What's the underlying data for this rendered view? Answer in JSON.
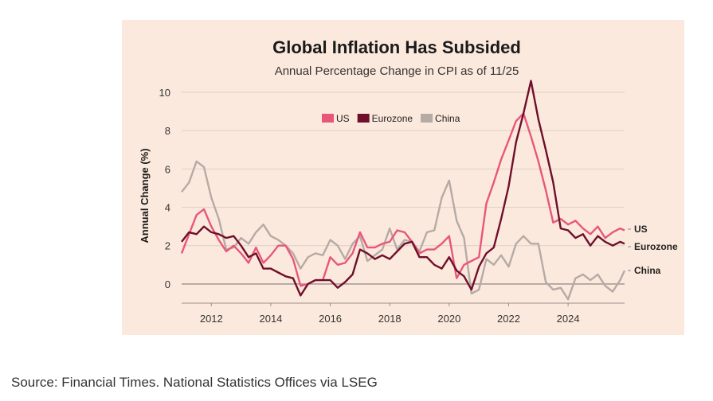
{
  "source_text": "Source: Financial Times. National Statistics Offices via LSEG",
  "chart_data": {
    "type": "line",
    "title": "Global Inflation Has Subsided",
    "subtitle": "Annual Percentage Change in CPI as of 11/25",
    "xlabel": "",
    "ylabel": "Annual Change (%)",
    "xlim": [
      2011.0,
      2025.9
    ],
    "ylim": [
      -1,
      10.5
    ],
    "yticks": [
      0,
      2,
      4,
      6,
      8,
      10
    ],
    "xticks": [
      2012,
      2014,
      2016,
      2018,
      2020,
      2022,
      2024
    ],
    "grid": true,
    "legend_position": "top-center",
    "series": [
      {
        "name": "US",
        "color": "#e8577a",
        "end_label": "US",
        "points": [
          [
            2011.0,
            1.6
          ],
          [
            2011.25,
            2.6
          ],
          [
            2011.5,
            3.6
          ],
          [
            2011.75,
            3.9
          ],
          [
            2012.0,
            3.0
          ],
          [
            2012.25,
            2.3
          ],
          [
            2012.5,
            1.7
          ],
          [
            2012.75,
            2.0
          ],
          [
            2013.0,
            1.6
          ],
          [
            2013.25,
            1.1
          ],
          [
            2013.5,
            1.9
          ],
          [
            2013.75,
            1.1
          ],
          [
            2014.0,
            1.5
          ],
          [
            2014.25,
            2.0
          ],
          [
            2014.5,
            2.0
          ],
          [
            2014.75,
            1.3
          ],
          [
            2015.0,
            -0.1
          ],
          [
            2015.25,
            0.0
          ],
          [
            2015.5,
            0.2
          ],
          [
            2015.75,
            0.2
          ],
          [
            2016.0,
            1.4
          ],
          [
            2016.25,
            1.0
          ],
          [
            2016.5,
            1.1
          ],
          [
            2016.75,
            1.6
          ],
          [
            2017.0,
            2.7
          ],
          [
            2017.25,
            1.9
          ],
          [
            2017.5,
            1.9
          ],
          [
            2017.75,
            2.1
          ],
          [
            2018.0,
            2.2
          ],
          [
            2018.25,
            2.8
          ],
          [
            2018.5,
            2.7
          ],
          [
            2018.75,
            2.2
          ],
          [
            2019.0,
            1.6
          ],
          [
            2019.25,
            1.8
          ],
          [
            2019.5,
            1.8
          ],
          [
            2019.75,
            2.1
          ],
          [
            2020.0,
            2.5
          ],
          [
            2020.25,
            0.3
          ],
          [
            2020.5,
            1.0
          ],
          [
            2020.75,
            1.2
          ],
          [
            2021.0,
            1.4
          ],
          [
            2021.25,
            4.2
          ],
          [
            2021.5,
            5.3
          ],
          [
            2021.75,
            6.5
          ],
          [
            2022.0,
            7.5
          ],
          [
            2022.25,
            8.5
          ],
          [
            2022.5,
            8.9
          ],
          [
            2022.75,
            7.7
          ],
          [
            2023.0,
            6.4
          ],
          [
            2023.25,
            4.9
          ],
          [
            2023.5,
            3.2
          ],
          [
            2023.75,
            3.4
          ],
          [
            2024.0,
            3.1
          ],
          [
            2024.25,
            3.3
          ],
          [
            2024.5,
            2.9
          ],
          [
            2024.75,
            2.6
          ],
          [
            2025.0,
            3.0
          ],
          [
            2025.25,
            2.4
          ],
          [
            2025.5,
            2.7
          ],
          [
            2025.75,
            2.9
          ],
          [
            2025.9,
            2.8
          ]
        ]
      },
      {
        "name": "Eurozone",
        "color": "#6e0f2b",
        "end_label": "Eurozone",
        "points": [
          [
            2011.0,
            2.2
          ],
          [
            2011.25,
            2.7
          ],
          [
            2011.5,
            2.6
          ],
          [
            2011.75,
            3.0
          ],
          [
            2012.0,
            2.7
          ],
          [
            2012.25,
            2.6
          ],
          [
            2012.5,
            2.4
          ],
          [
            2012.75,
            2.5
          ],
          [
            2013.0,
            2.0
          ],
          [
            2013.25,
            1.4
          ],
          [
            2013.5,
            1.6
          ],
          [
            2013.75,
            0.8
          ],
          [
            2014.0,
            0.8
          ],
          [
            2014.25,
            0.6
          ],
          [
            2014.5,
            0.4
          ],
          [
            2014.75,
            0.3
          ],
          [
            2015.0,
            -0.6
          ],
          [
            2015.25,
            0.0
          ],
          [
            2015.5,
            0.2
          ],
          [
            2015.75,
            0.2
          ],
          [
            2016.0,
            0.2
          ],
          [
            2016.25,
            -0.2
          ],
          [
            2016.5,
            0.1
          ],
          [
            2016.75,
            0.5
          ],
          [
            2017.0,
            1.8
          ],
          [
            2017.25,
            1.6
          ],
          [
            2017.5,
            1.3
          ],
          [
            2017.75,
            1.5
          ],
          [
            2018.0,
            1.3
          ],
          [
            2018.25,
            1.7
          ],
          [
            2018.5,
            2.1
          ],
          [
            2018.75,
            2.2
          ],
          [
            2019.0,
            1.4
          ],
          [
            2019.25,
            1.4
          ],
          [
            2019.5,
            1.0
          ],
          [
            2019.75,
            0.8
          ],
          [
            2020.0,
            1.4
          ],
          [
            2020.25,
            0.7
          ],
          [
            2020.5,
            0.4
          ],
          [
            2020.75,
            -0.3
          ],
          [
            2021.0,
            0.9
          ],
          [
            2021.25,
            1.6
          ],
          [
            2021.5,
            1.9
          ],
          [
            2021.75,
            3.4
          ],
          [
            2022.0,
            5.1
          ],
          [
            2022.25,
            7.4
          ],
          [
            2022.5,
            8.9
          ],
          [
            2022.75,
            10.6
          ],
          [
            2023.0,
            8.6
          ],
          [
            2023.25,
            7.0
          ],
          [
            2023.5,
            5.3
          ],
          [
            2023.75,
            2.9
          ],
          [
            2024.0,
            2.8
          ],
          [
            2024.25,
            2.4
          ],
          [
            2024.5,
            2.6
          ],
          [
            2024.75,
            2.0
          ],
          [
            2025.0,
            2.5
          ],
          [
            2025.25,
            2.2
          ],
          [
            2025.5,
            2.0
          ],
          [
            2025.75,
            2.2
          ],
          [
            2025.9,
            2.1
          ]
        ]
      },
      {
        "name": "China",
        "color": "#b5aaa5",
        "end_label": "China",
        "points": [
          [
            2011.0,
            4.8
          ],
          [
            2011.25,
            5.3
          ],
          [
            2011.5,
            6.4
          ],
          [
            2011.75,
            6.1
          ],
          [
            2012.0,
            4.5
          ],
          [
            2012.25,
            3.4
          ],
          [
            2012.5,
            1.8
          ],
          [
            2012.75,
            1.9
          ],
          [
            2013.0,
            2.4
          ],
          [
            2013.25,
            2.1
          ],
          [
            2013.5,
            2.7
          ],
          [
            2013.75,
            3.1
          ],
          [
            2014.0,
            2.5
          ],
          [
            2014.25,
            2.3
          ],
          [
            2014.5,
            2.0
          ],
          [
            2014.75,
            1.6
          ],
          [
            2015.0,
            0.8
          ],
          [
            2015.25,
            1.4
          ],
          [
            2015.5,
            1.6
          ],
          [
            2015.75,
            1.5
          ],
          [
            2016.0,
            2.3
          ],
          [
            2016.25,
            2.0
          ],
          [
            2016.5,
            1.3
          ],
          [
            2016.75,
            2.1
          ],
          [
            2017.0,
            2.5
          ],
          [
            2017.25,
            1.2
          ],
          [
            2017.5,
            1.5
          ],
          [
            2017.75,
            1.8
          ],
          [
            2018.0,
            2.9
          ],
          [
            2018.25,
            1.8
          ],
          [
            2018.5,
            2.3
          ],
          [
            2018.75,
            2.2
          ],
          [
            2019.0,
            1.7
          ],
          [
            2019.25,
            2.7
          ],
          [
            2019.5,
            2.8
          ],
          [
            2019.75,
            4.5
          ],
          [
            2020.0,
            5.4
          ],
          [
            2020.25,
            3.3
          ],
          [
            2020.5,
            2.4
          ],
          [
            2020.75,
            -0.5
          ],
          [
            2021.0,
            -0.3
          ],
          [
            2021.25,
            1.3
          ],
          [
            2021.5,
            1.0
          ],
          [
            2021.75,
            1.5
          ],
          [
            2022.0,
            0.9
          ],
          [
            2022.25,
            2.1
          ],
          [
            2022.5,
            2.5
          ],
          [
            2022.75,
            2.1
          ],
          [
            2023.0,
            2.1
          ],
          [
            2023.25,
            0.1
          ],
          [
            2023.5,
            -0.3
          ],
          [
            2023.75,
            -0.2
          ],
          [
            2024.0,
            -0.8
          ],
          [
            2024.25,
            0.3
          ],
          [
            2024.5,
            0.5
          ],
          [
            2024.75,
            0.2
          ],
          [
            2025.0,
            0.5
          ],
          [
            2025.25,
            -0.1
          ],
          [
            2025.5,
            -0.4
          ],
          [
            2025.75,
            0.2
          ],
          [
            2025.9,
            0.7
          ]
        ]
      }
    ]
  }
}
